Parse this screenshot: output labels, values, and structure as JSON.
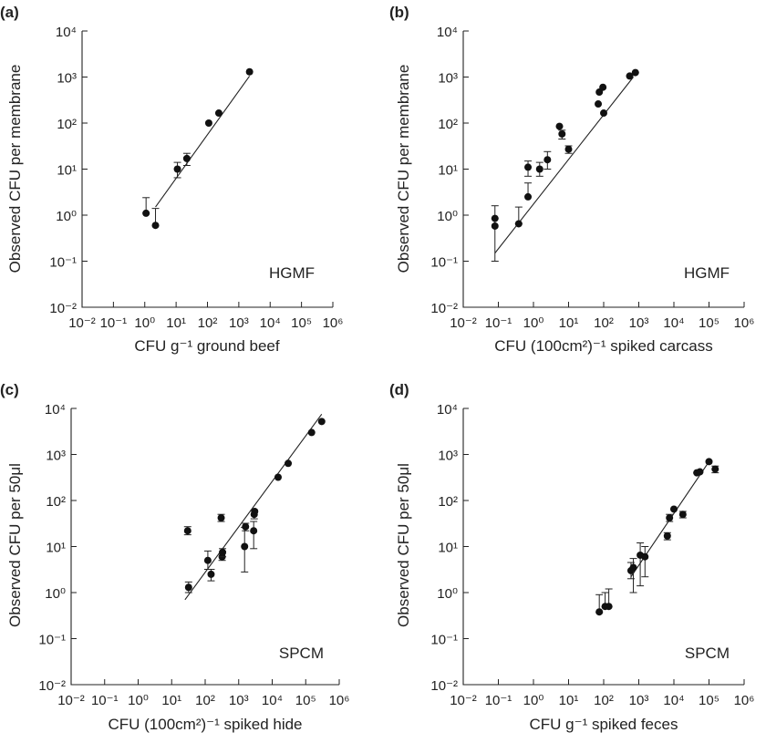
{
  "chart_data": [
    {
      "type": "scatter",
      "panel": "(a)",
      "method": "HGMF",
      "xlabel": "CFU g⁻¹ ground beef",
      "ylabel": "Observed CFU per membrane",
      "xscale": "log",
      "yscale": "log",
      "xlim": [
        0.01,
        1000000
      ],
      "ylim": [
        0.01,
        10000
      ],
      "points": [
        {
          "x": 1.1,
          "y": 1.1,
          "ylo": 1.1,
          "yhi": 2.4
        },
        {
          "x": 2.2,
          "y": 0.6,
          "ylo": 0.6,
          "yhi": 1.4
        },
        {
          "x": 11,
          "y": 10,
          "ylo": 6.5,
          "yhi": 14
        },
        {
          "x": 22,
          "y": 17,
          "ylo": 12,
          "yhi": 22
        },
        {
          "x": 110,
          "y": 100
        },
        {
          "x": 230,
          "y": 165
        },
        {
          "x": 2200,
          "y": 1300
        }
      ],
      "fit": [
        [
          2.2,
          1.5
        ],
        [
          2200,
          1050
        ]
      ]
    },
    {
      "type": "scatter",
      "panel": "(b)",
      "method": "HGMF",
      "xlabel": "CFU (100cm²)⁻¹ spiked carcass",
      "ylabel": "Observed CFU per membrane",
      "xscale": "log",
      "yscale": "log",
      "xlim": [
        0.01,
        1000000
      ],
      "ylim": [
        0.01,
        10000
      ],
      "points": [
        {
          "x": 0.08,
          "y": 0.58,
          "ylo": 0.1,
          "yhi": 1.6
        },
        {
          "x": 0.08,
          "y": 0.85
        },
        {
          "x": 0.38,
          "y": 0.65,
          "ylo": 0.65,
          "yhi": 1.5
        },
        {
          "x": 0.7,
          "y": 2.5,
          "ylo": 2.5,
          "yhi": 5
        },
        {
          "x": 0.7,
          "y": 11,
          "ylo": 7,
          "yhi": 15
        },
        {
          "x": 1.5,
          "y": 10,
          "ylo": 7,
          "yhi": 14
        },
        {
          "x": 2.5,
          "y": 16,
          "ylo": 10,
          "yhi": 24
        },
        {
          "x": 5.5,
          "y": 85
        },
        {
          "x": 6.5,
          "y": 58,
          "ylo": 45,
          "yhi": 70
        },
        {
          "x": 10,
          "y": 27,
          "ylo": 22,
          "yhi": 32
        },
        {
          "x": 70,
          "y": 260
        },
        {
          "x": 75,
          "y": 470
        },
        {
          "x": 95,
          "y": 600
        },
        {
          "x": 100,
          "y": 165
        },
        {
          "x": 550,
          "y": 1050
        },
        {
          "x": 800,
          "y": 1250
        }
      ],
      "fit": [
        [
          0.08,
          0.15
        ],
        [
          700,
          1000
        ]
      ]
    },
    {
      "type": "scatter",
      "panel": "(c)",
      "method": "SPCM",
      "xlabel": "CFU (100cm²)⁻¹ spiked hide",
      "ylabel": "Observed CFU per 50μl",
      "xscale": "log",
      "yscale": "log",
      "xlim": [
        0.01,
        1000000
      ],
      "ylim": [
        0.01,
        10000
      ],
      "points": [
        {
          "x": 30,
          "y": 22,
          "ylo": 18,
          "yhi": 27
        },
        {
          "x": 32,
          "y": 1.3,
          "ylo": 1.0,
          "yhi": 1.7
        },
        {
          "x": 120,
          "y": 5,
          "ylo": 3.2,
          "yhi": 8
        },
        {
          "x": 150,
          "y": 2.5,
          "ylo": 1.8,
          "yhi": 3.2
        },
        {
          "x": 300,
          "y": 42,
          "ylo": 35,
          "yhi": 50
        },
        {
          "x": 320,
          "y": 6,
          "ylo": 5,
          "yhi": 7
        },
        {
          "x": 330,
          "y": 7.5,
          "ylo": 6,
          "yhi": 9
        },
        {
          "x": 1500,
          "y": 10,
          "ylo": 2.8,
          "yhi": 26
        },
        {
          "x": 1600,
          "y": 27,
          "ylo": 22,
          "yhi": 32
        },
        {
          "x": 2800,
          "y": 22,
          "ylo": 9,
          "yhi": 35
        },
        {
          "x": 2900,
          "y": 50,
          "ylo": 40,
          "yhi": 62
        },
        {
          "x": 3000,
          "y": 58
        },
        {
          "x": 15000,
          "y": 320
        },
        {
          "x": 30000,
          "y": 640
        },
        {
          "x": 150000,
          "y": 3000
        },
        {
          "x": 300000,
          "y": 5200
        }
      ],
      "fit": [
        [
          25,
          0.7
        ],
        [
          300000,
          7500
        ]
      ]
    },
    {
      "type": "scatter",
      "panel": "(d)",
      "method": "SPCM",
      "xlabel": "CFU g⁻¹ spiked feces",
      "ylabel": "Observed CFU per 50μl",
      "xscale": "log",
      "yscale": "log",
      "xlim": [
        0.01,
        1000000
      ],
      "ylim": [
        0.01,
        10000
      ],
      "points": [
        {
          "x": 75,
          "y": 0.38,
          "ylo": 0.38,
          "yhi": 0.9
        },
        {
          "x": 110,
          "y": 0.5,
          "ylo": 0.5,
          "yhi": 1.0
        },
        {
          "x": 140,
          "y": 0.5,
          "ylo": 0.5,
          "yhi": 1.2
        },
        {
          "x": 600,
          "y": 3,
          "ylo": 2,
          "yhi": 4.5
        },
        {
          "x": 700,
          "y": 3.5,
          "ylo": 1.0,
          "yhi": 5.5
        },
        {
          "x": 1100,
          "y": 6.5,
          "ylo": 1.4,
          "yhi": 12
        },
        {
          "x": 1500,
          "y": 6,
          "ylo": 2.2,
          "yhi": 10
        },
        {
          "x": 6500,
          "y": 17,
          "ylo": 14,
          "yhi": 20
        },
        {
          "x": 7500,
          "y": 42,
          "ylo": 35,
          "yhi": 50
        },
        {
          "x": 10000,
          "y": 65
        },
        {
          "x": 18000,
          "y": 50,
          "ylo": 42,
          "yhi": 58
        },
        {
          "x": 45000,
          "y": 400
        },
        {
          "x": 55000,
          "y": 420
        },
        {
          "x": 100000,
          "y": 700
        },
        {
          "x": 150000,
          "y": 480,
          "ylo": 400,
          "yhi": 560
        }
      ],
      "fit": [
        [
          600,
          2.2
        ],
        [
          100000,
          700
        ]
      ]
    }
  ],
  "ticks": {
    "x": [
      "10⁻²",
      "10⁻¹",
      "10⁰",
      "10¹",
      "10²",
      "10³",
      "10⁴",
      "10⁵",
      "10⁶"
    ],
    "y": [
      "10⁻²",
      "10⁻¹",
      "10⁰",
      "10¹",
      "10²",
      "10³",
      "10⁴"
    ]
  }
}
